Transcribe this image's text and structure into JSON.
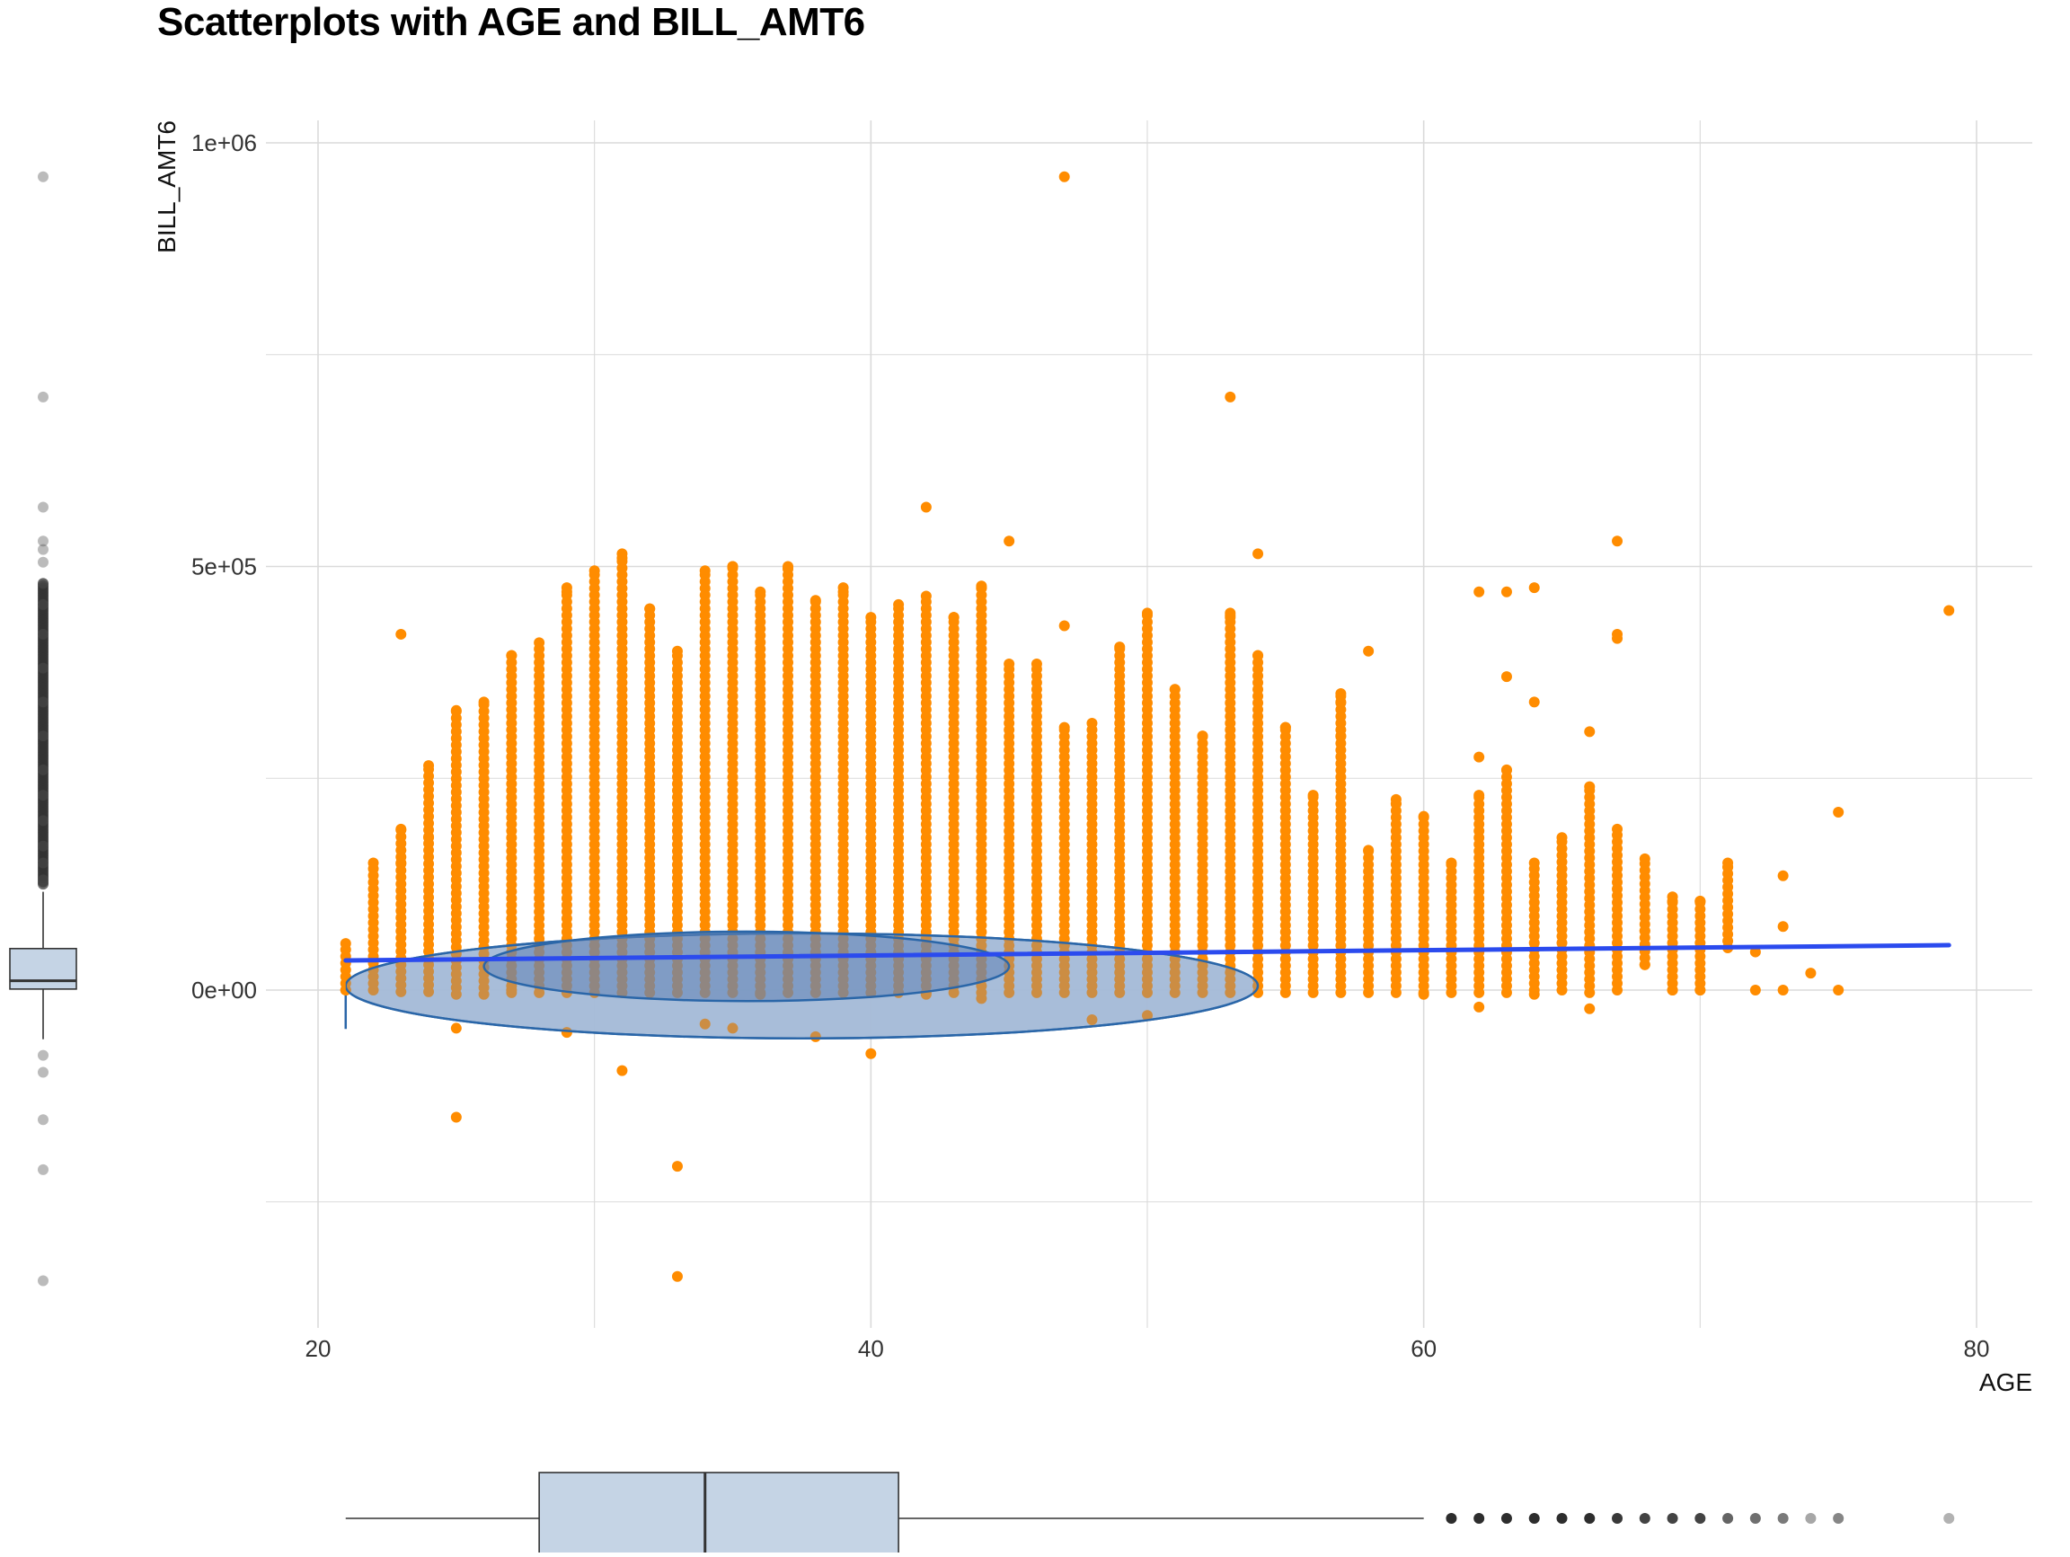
{
  "title": "Scatterplots with AGE and BILL_AMT6",
  "chart_data": {
    "type": "scatter",
    "title": "Scatterplots with AGE and BILL_AMT6",
    "xlabel": "AGE",
    "ylabel": "BILL_AMT6",
    "xlim": [
      18,
      82
    ],
    "ylim": [
      -400000,
      1030000
    ],
    "x_ticks": [
      20,
      40,
      60,
      80
    ],
    "x_tick_labels": [
      "20",
      "40",
      "60",
      "80"
    ],
    "y_ticks": [
      0,
      500000,
      1000000
    ],
    "y_tick_labels": [
      "0e+00",
      "5e+05",
      "1e+06"
    ],
    "grid": true,
    "colors": {
      "points": "#FF8C00",
      "regression_line": "#2B4BEE",
      "ellipse_fill": "#6E8FC0",
      "ellipse_stroke": "#2A66A8",
      "boxplot_fill": "#C5D4E5",
      "outlier": "#222222"
    },
    "regression_line": {
      "x": [
        21,
        79
      ],
      "y": [
        35000,
        53000
      ]
    },
    "ellipses": [
      {
        "level": "outer",
        "cx": 37.5,
        "cy": 5000,
        "rx": 16.5,
        "ry": 62000
      },
      {
        "level": "inner",
        "cx": 35.5,
        "cy": 28000,
        "rx": 9.5,
        "ry": 41000
      }
    ],
    "columns": [
      {
        "x": 21,
        "min": 0,
        "max": 55000
      },
      {
        "x": 22,
        "min": 0,
        "max": 150000
      },
      {
        "x": 23,
        "min": -2000,
        "max": 190000
      },
      {
        "x": 24,
        "min": -2000,
        "max": 265000
      },
      {
        "x": 25,
        "min": -5000,
        "max": 330000
      },
      {
        "x": 26,
        "min": -5000,
        "max": 340000
      },
      {
        "x": 27,
        "min": -3000,
        "max": 395000
      },
      {
        "x": 28,
        "min": -3000,
        "max": 410000
      },
      {
        "x": 29,
        "min": -3000,
        "max": 470000
      },
      {
        "x": 30,
        "min": -3000,
        "max": 490000
      },
      {
        "x": 31,
        "min": -3000,
        "max": 510000
      },
      {
        "x": 32,
        "min": -3000,
        "max": 450000
      },
      {
        "x": 33,
        "min": -3000,
        "max": 400000
      },
      {
        "x": 34,
        "min": -3000,
        "max": 490000
      },
      {
        "x": 35,
        "min": -3000,
        "max": 500000
      },
      {
        "x": 36,
        "min": -3000,
        "max": 470000
      },
      {
        "x": 37,
        "min": -3000,
        "max": 500000
      },
      {
        "x": 38,
        "min": -3000,
        "max": 460000
      },
      {
        "x": 39,
        "min": -3000,
        "max": 470000
      },
      {
        "x": 40,
        "min": -3000,
        "max": 440000
      },
      {
        "x": 41,
        "min": -3000,
        "max": 455000
      },
      {
        "x": 42,
        "min": -3000,
        "max": 465000
      },
      {
        "x": 43,
        "min": -3000,
        "max": 440000
      },
      {
        "x": 44,
        "min": -3000,
        "max": 475000
      },
      {
        "x": 45,
        "min": -3000,
        "max": 385000
      },
      {
        "x": 46,
        "min": -3000,
        "max": 385000
      },
      {
        "x": 47,
        "min": -3000,
        "max": 310000
      },
      {
        "x": 48,
        "min": -3000,
        "max": 315000
      },
      {
        "x": 49,
        "min": -3000,
        "max": 405000
      },
      {
        "x": 50,
        "min": -3000,
        "max": 445000
      },
      {
        "x": 51,
        "min": -3000,
        "max": 355000
      },
      {
        "x": 52,
        "min": -3000,
        "max": 300000
      },
      {
        "x": 53,
        "min": -3000,
        "max": 445000
      },
      {
        "x": 54,
        "min": -3000,
        "max": 395000
      },
      {
        "x": 55,
        "min": -3000,
        "max": 310000
      },
      {
        "x": 56,
        "min": -3000,
        "max": 230000
      },
      {
        "x": 57,
        "min": -3000,
        "max": 350000
      },
      {
        "x": 58,
        "min": -3000,
        "max": 165000
      },
      {
        "x": 59,
        "min": -3000,
        "max": 220000
      },
      {
        "x": 60,
        "min": -3000,
        "max": 205000
      },
      {
        "x": 61,
        "min": -3000,
        "max": 150000
      },
      {
        "x": 62,
        "min": -3000,
        "max": 230000
      },
      {
        "x": 63,
        "min": -3000,
        "max": 260000
      },
      {
        "x": 64,
        "min": 0,
        "max": 150000
      },
      {
        "x": 65,
        "min": 0,
        "max": 180000
      },
      {
        "x": 66,
        "min": -3000,
        "max": 240000
      },
      {
        "x": 67,
        "min": 0,
        "max": 190000
      },
      {
        "x": 68,
        "min": 30000,
        "max": 155000
      },
      {
        "x": 69,
        "min": 0,
        "max": 105000
      },
      {
        "x": 70,
        "min": 0,
        "max": 105000
      },
      {
        "x": 71,
        "min": 50000,
        "max": 150000
      }
    ],
    "points": [
      [
        47,
        960000
      ],
      [
        53,
        700000
      ],
      [
        42,
        570000
      ],
      [
        45,
        530000
      ],
      [
        31,
        515000
      ],
      [
        54,
        515000
      ],
      [
        67,
        530000
      ],
      [
        30,
        495000
      ],
      [
        35,
        500000
      ],
      [
        37,
        497000
      ],
      [
        34,
        495000
      ],
      [
        29,
        475000
      ],
      [
        39,
        475000
      ],
      [
        44,
        477000
      ],
      [
        63,
        470000
      ],
      [
        64,
        475000
      ],
      [
        62,
        470000
      ],
      [
        79,
        448000
      ],
      [
        67,
        420000
      ],
      [
        67,
        415000
      ],
      [
        23,
        420000
      ],
      [
        32,
        450000
      ],
      [
        47,
        430000
      ],
      [
        53,
        440000
      ],
      [
        43,
        440000
      ],
      [
        58,
        400000
      ],
      [
        63,
        370000
      ],
      [
        57,
        340000
      ],
      [
        55,
        310000
      ],
      [
        57,
        300000
      ],
      [
        66,
        305000
      ],
      [
        64,
        340000
      ],
      [
        59,
        225000
      ],
      [
        62,
        275000
      ],
      [
        75,
        210000
      ],
      [
        23,
        150000
      ],
      [
        24,
        180000
      ],
      [
        21,
        0
      ],
      [
        33,
        -208000
      ],
      [
        33,
        -338000
      ],
      [
        25,
        -150000
      ],
      [
        31,
        -95000
      ],
      [
        40,
        -75000
      ],
      [
        38,
        -55000
      ],
      [
        35,
        -45000
      ],
      [
        29,
        -50000
      ],
      [
        25,
        -45000
      ],
      [
        34,
        -40000
      ],
      [
        48,
        -35000
      ],
      [
        50,
        -30000
      ],
      [
        62,
        -20000
      ],
      [
        66,
        -22000
      ],
      [
        69,
        0
      ],
      [
        70,
        0
      ],
      [
        72,
        0
      ],
      [
        73,
        0
      ],
      [
        73,
        75000
      ],
      [
        74,
        20000
      ],
      [
        75,
        0
      ],
      [
        73,
        135000
      ],
      [
        71,
        145000
      ],
      [
        69,
        110000
      ],
      [
        70,
        105000
      ],
      [
        68,
        70000
      ],
      [
        68,
        30000
      ],
      [
        72,
        45000
      ],
      [
        71,
        50000
      ],
      [
        27,
        0
      ],
      [
        44,
        -10000
      ],
      [
        42,
        -5000
      ],
      [
        36,
        -5000
      ],
      [
        60,
        -5000
      ],
      [
        64,
        -5000
      ]
    ],
    "y_marginal_boxplot": {
      "q1": 1200,
      "median": 11000,
      "q3": 49000,
      "lower_whisker": -58000,
      "upper_whisker": 116000,
      "outliers": [
        960000,
        700000,
        570000,
        530000,
        520000,
        505000,
        480000,
        455000,
        420000,
        380000,
        340000,
        300000,
        260000,
        230000,
        200000,
        170000,
        150000,
        130000,
        -77000,
        -97000,
        -153000,
        -212000,
        -343000
      ]
    },
    "x_marginal_boxplot": {
      "q1": 28,
      "median": 34,
      "q3": 41,
      "lower_whisker": 21,
      "upper_whisker": 60,
      "outliers": [
        61,
        62,
        63,
        64,
        65,
        66,
        67,
        68,
        69,
        70,
        71,
        72,
        73,
        74,
        75,
        79
      ]
    }
  }
}
